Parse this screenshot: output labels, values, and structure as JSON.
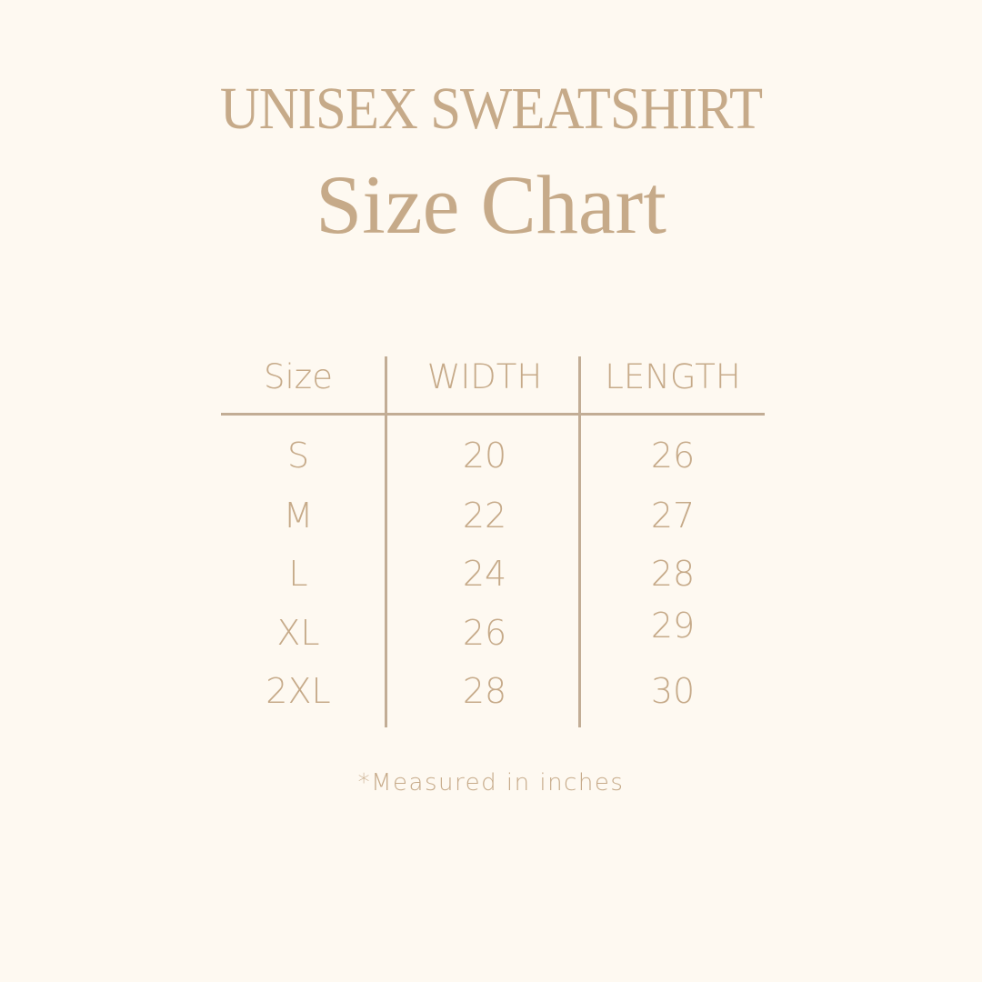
{
  "title": "UNISEX SWEATSHIRT",
  "subtitle": "Size Chart",
  "table": {
    "headers": [
      "Size",
      "WIDTH",
      "LENGTH"
    ],
    "rows": [
      [
        "S",
        "20",
        "26"
      ],
      [
        "M",
        "22",
        "27"
      ],
      [
        "L",
        "24",
        "28"
      ],
      [
        "XL",
        "26",
        "29"
      ],
      [
        "2XL",
        "28",
        "30"
      ]
    ]
  },
  "note": "*Measured in inches",
  "colors": {
    "background": "#fef9f1",
    "text": "#c6aa89",
    "lines": "#c2ad95"
  }
}
